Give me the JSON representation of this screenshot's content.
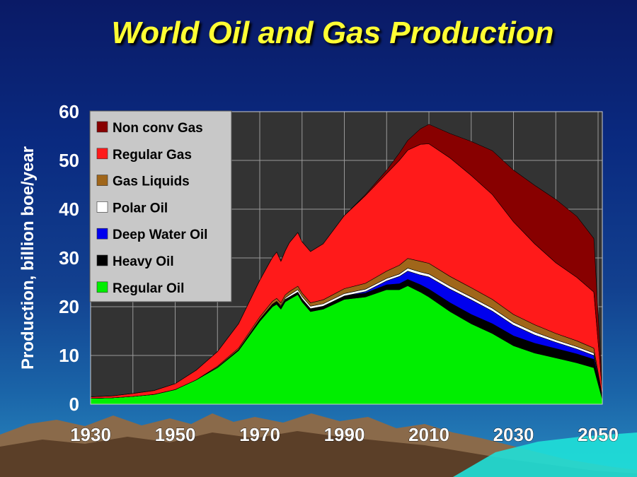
{
  "title": "World Oil and Gas Production",
  "chart_data": {
    "type": "area",
    "stacked": true,
    "title": "World Oil and Gas Production",
    "xlabel": "",
    "ylabel": "Production, billion boe/year",
    "xlim": [
      1930,
      2051
    ],
    "ylim": [
      0,
      60
    ],
    "x_ticks": [
      "1930",
      "1950",
      "1970",
      "1990",
      "2010",
      "2030",
      "2050"
    ],
    "y_ticks": [
      "0",
      "10",
      "20",
      "30",
      "40",
      "50",
      "60"
    ],
    "grid": true,
    "legend_position": "top-left",
    "x": [
      1930,
      1935,
      1940,
      1945,
      1950,
      1955,
      1960,
      1965,
      1970,
      1973,
      1974,
      1975,
      1976,
      1977,
      1979,
      1980,
      1982,
      1985,
      1990,
      1995,
      2000,
      2003,
      2005,
      2008,
      2010,
      2015,
      2020,
      2025,
      2030,
      2035,
      2040,
      2045,
      2049,
      2051
    ],
    "series": [
      {
        "name": "Regular Oil",
        "color": "#00ee00",
        "values": [
          1.2,
          1.3,
          1.6,
          2.0,
          3.0,
          5.0,
          7.5,
          11,
          17,
          20,
          20.5,
          19.5,
          21,
          21.5,
          22.5,
          21,
          19,
          19.5,
          21.5,
          22,
          23.5,
          23.5,
          24.3,
          23,
          22,
          19,
          16.5,
          14.5,
          12,
          10.5,
          9.5,
          8.5,
          7.5,
          1
        ]
      },
      {
        "name": "Heavy Oil",
        "color": "#000000",
        "values": [
          0,
          0,
          0,
          0,
          0,
          0,
          0.1,
          0.2,
          0.4,
          0.5,
          0.5,
          0.5,
          0.5,
          0.5,
          0.5,
          0.6,
          0.6,
          0.6,
          0.7,
          0.8,
          1.0,
          1.2,
          1.3,
          1.5,
          1.6,
          1.8,
          1.9,
          2.0,
          2.0,
          2.0,
          1.9,
          1.8,
          1.7,
          0.3
        ]
      },
      {
        "name": "Deep Water Oil",
        "color": "#0000ee",
        "values": [
          0,
          0,
          0,
          0,
          0,
          0,
          0,
          0,
          0,
          0,
          0,
          0,
          0,
          0,
          0,
          0,
          0,
          0,
          0,
          0.3,
          0.8,
          1.5,
          1.7,
          2.0,
          2.5,
          2.8,
          3.0,
          2.6,
          2.2,
          1.7,
          1.3,
          1.0,
          0.8,
          0.1
        ]
      },
      {
        "name": "Polar Oil",
        "color": "#ffffff",
        "values": [
          0,
          0,
          0,
          0,
          0,
          0,
          0,
          0,
          0,
          0,
          0.1,
          0.2,
          0.3,
          0.4,
          0.5,
          0.5,
          0.5,
          0.5,
          0.5,
          0.5,
          0.5,
          0.5,
          0.6,
          0.6,
          0.6,
          0.6,
          0.6,
          0.6,
          0.6,
          0.6,
          0.5,
          0.5,
          0.5,
          0.1
        ]
      },
      {
        "name": "Gas Liquids",
        "color": "#a0661a",
        "values": [
          0,
          0,
          0,
          0,
          0,
          0,
          0.2,
          0.3,
          0.5,
          0.6,
          0.6,
          0.6,
          0.6,
          0.7,
          0.7,
          0.7,
          0.7,
          0.8,
          1.0,
          1.2,
          1.5,
          1.8,
          2.0,
          2.2,
          2.2,
          2.0,
          1.9,
          1.8,
          1.6,
          1.5,
          1.3,
          1.2,
          1.0,
          0.2
        ]
      },
      {
        "name": "Regular Gas",
        "color": "#ff1a1a",
        "values": [
          0.3,
          0.4,
          0.6,
          0.8,
          1.2,
          2.0,
          3.0,
          5.0,
          7.5,
          9.0,
          9.5,
          8.5,
          9.0,
          10.0,
          11.0,
          10.5,
          10.5,
          11.5,
          15.0,
          18.0,
          20.0,
          21.5,
          22.2,
          24.0,
          24.5,
          24.3,
          23.0,
          21.5,
          19.0,
          16.6,
          14.5,
          13.0,
          11.5,
          1
        ]
      },
      {
        "name": "Non conv Gas",
        "color": "#880000",
        "values": [
          0,
          0,
          0,
          0,
          0,
          0,
          0,
          0,
          0,
          0,
          0,
          0,
          0,
          0,
          0,
          0,
          0,
          0,
          0,
          0.2,
          0.7,
          1.5,
          2.0,
          3.2,
          4.0,
          5.0,
          7.0,
          9.0,
          10.6,
          12.0,
          13.0,
          12.5,
          11.0,
          0.8
        ]
      }
    ]
  },
  "legend_order": [
    "Non conv Gas",
    "Regular Gas",
    "Gas Liquids",
    "Polar Oil",
    "Deep Water Oil",
    "Heavy Oil",
    "Regular Oil"
  ]
}
